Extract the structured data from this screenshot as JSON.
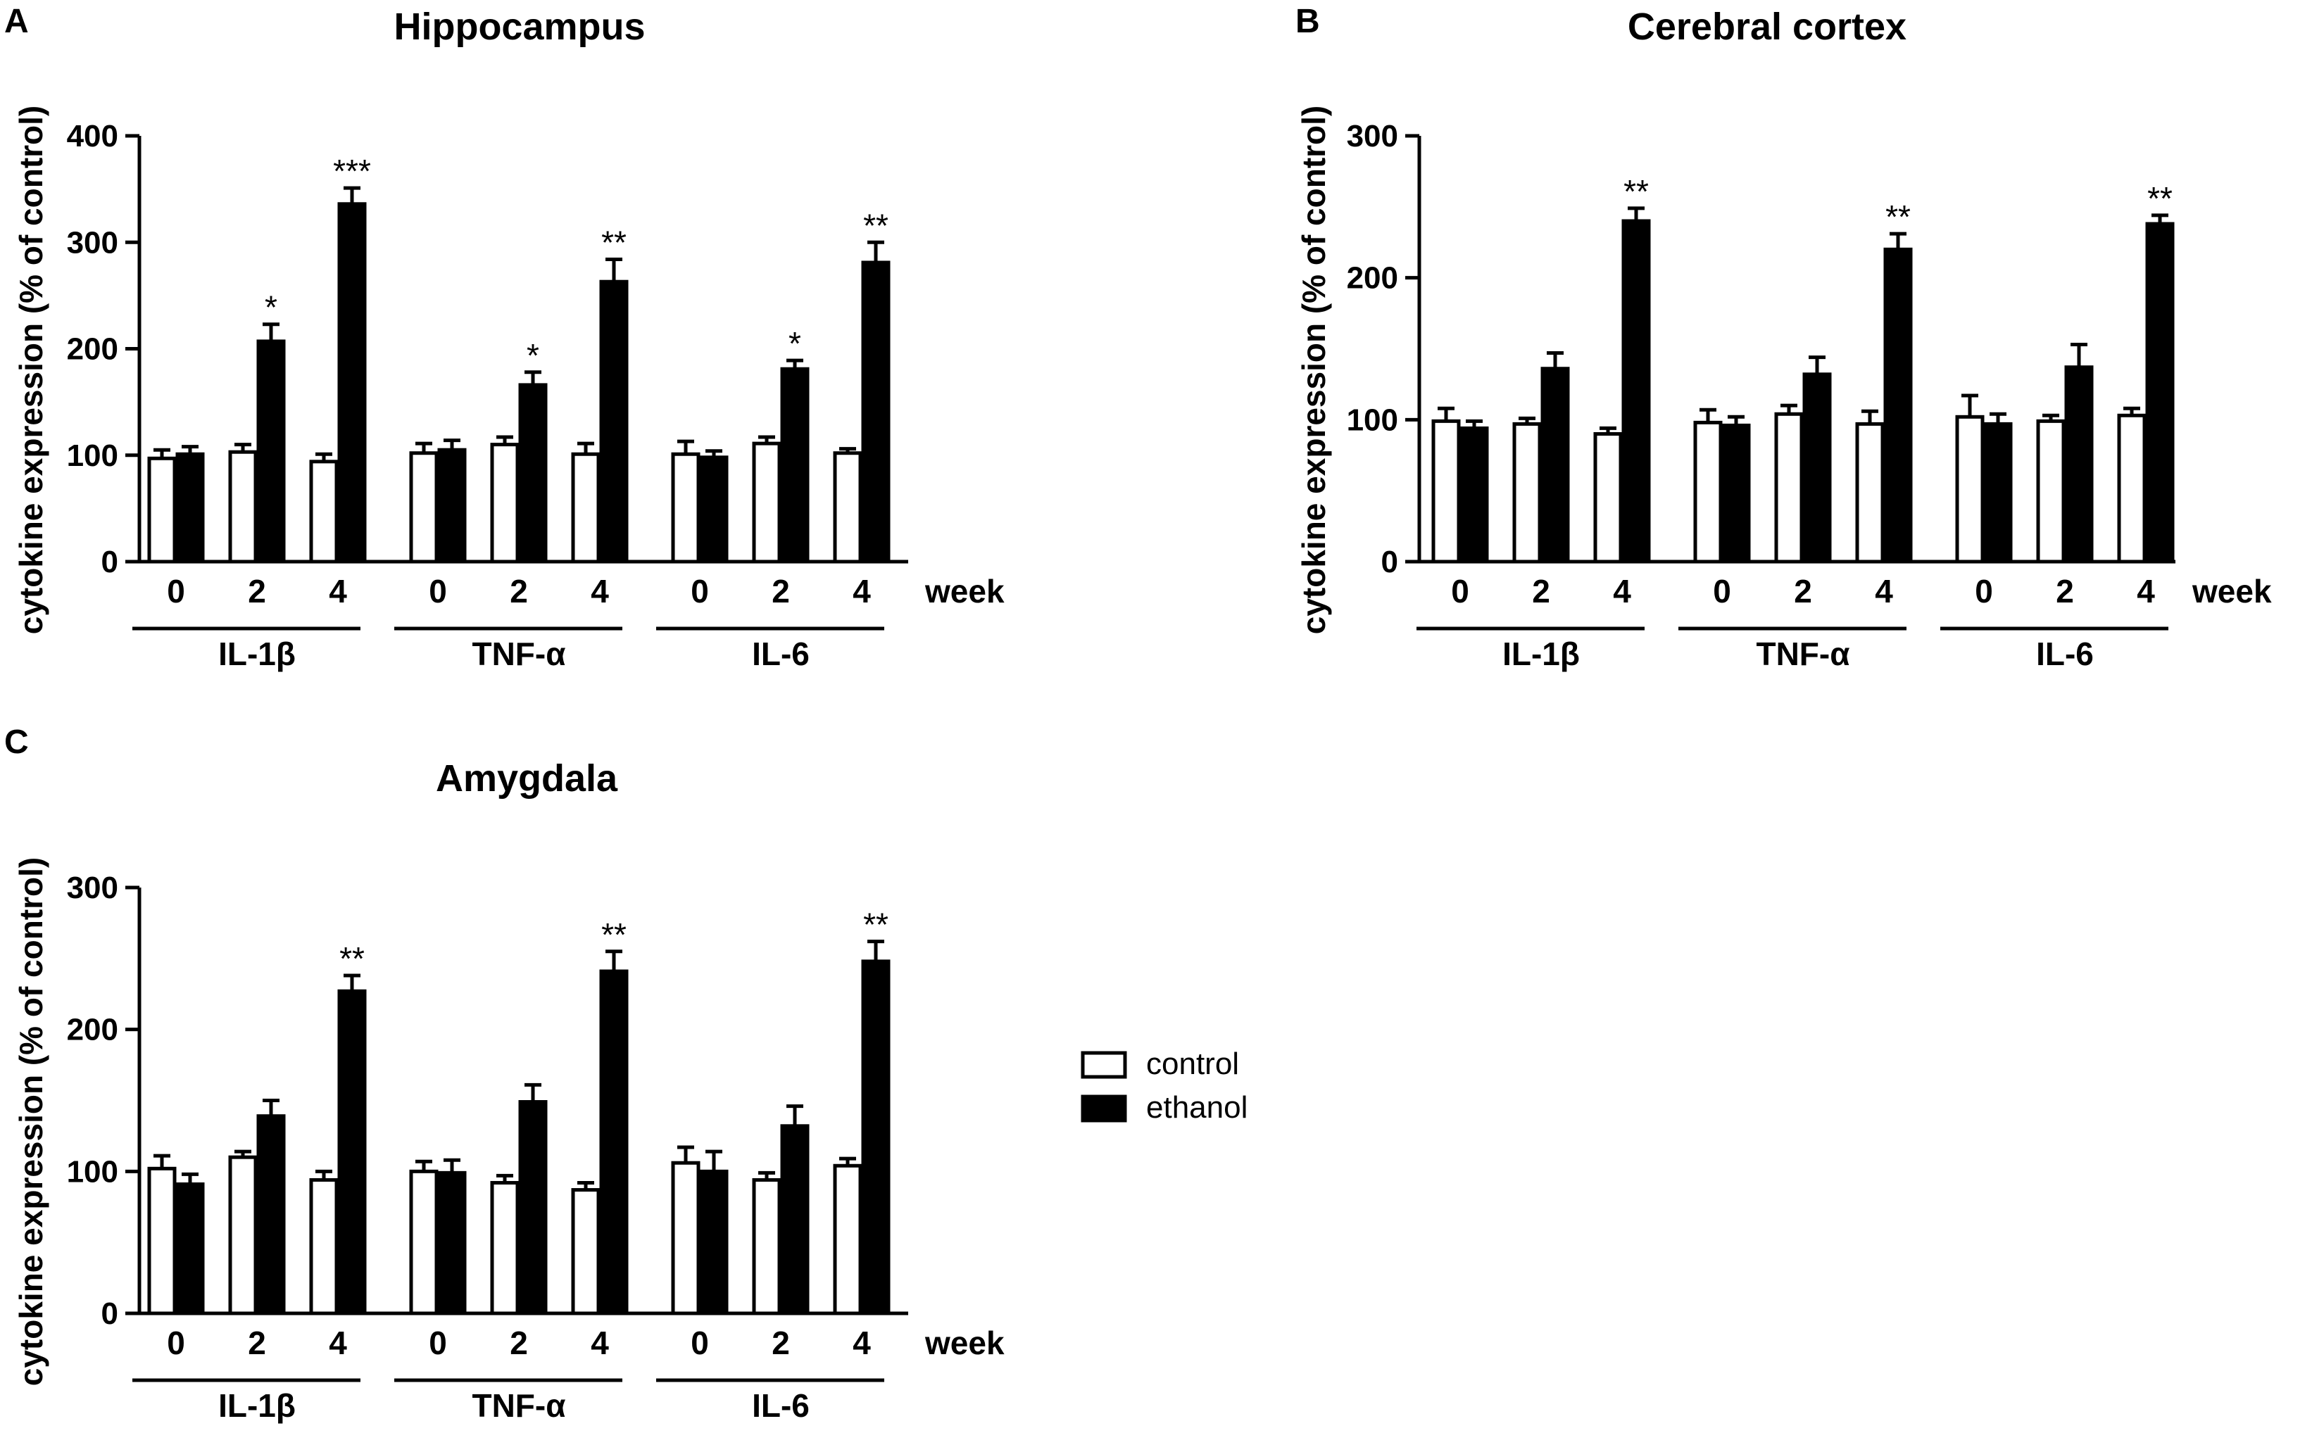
{
  "legend": {
    "items": [
      {
        "label": "control",
        "fill": "#ffffff"
      },
      {
        "label": "ethanol",
        "fill": "#000000"
      }
    ]
  },
  "chart_data": [
    {
      "panel": "A",
      "type": "bar",
      "title": "Hippocampus",
      "ylabel": "cytokine expression (% of control)",
      "xlabel": "week",
      "ylim": [
        0,
        400
      ],
      "yticks": [
        0,
        100,
        200,
        300,
        400
      ],
      "weeks": [
        "0",
        "2",
        "4"
      ],
      "groups": [
        {
          "name": "IL-1β",
          "control": [
            97,
            103,
            94
          ],
          "control_err": [
            8,
            7,
            7
          ],
          "ethanol": [
            101,
            207,
            336
          ],
          "ethanol_err": [
            7,
            16,
            15
          ],
          "sig": [
            "",
            "*",
            "***"
          ]
        },
        {
          "name": "TNF-α",
          "control": [
            102,
            110,
            101
          ],
          "control_err": [
            9,
            7,
            10
          ],
          "ethanol": [
            105,
            166,
            263
          ],
          "ethanol_err": [
            9,
            12,
            21
          ],
          "sig": [
            "",
            "*",
            "**"
          ]
        },
        {
          "name": "IL-6",
          "control": [
            101,
            111,
            102
          ],
          "control_err": [
            12,
            6,
            4
          ],
          "ethanol": [
            98,
            181,
            281
          ],
          "ethanol_err": [
            6,
            8,
            19
          ],
          "sig": [
            "",
            "*",
            "**"
          ]
        }
      ]
    },
    {
      "panel": "B",
      "type": "bar",
      "title": "Cerebral cortex",
      "ylabel": "cytokine expression (% of control)",
      "xlabel": "week",
      "ylim": [
        0,
        300
      ],
      "yticks": [
        0,
        100,
        200,
        300
      ],
      "weeks": [
        "0",
        "2",
        "4"
      ],
      "groups": [
        {
          "name": "IL-1β",
          "control": [
            99,
            97,
            90
          ],
          "control_err": [
            9,
            4,
            4
          ],
          "ethanol": [
            94,
            136,
            240
          ],
          "ethanol_err": [
            5,
            11,
            9
          ],
          "sig": [
            "",
            "",
            "**"
          ]
        },
        {
          "name": "TNF-α",
          "control": [
            98,
            104,
            97
          ],
          "control_err": [
            9,
            6,
            9
          ],
          "ethanol": [
            96,
            132,
            220
          ],
          "ethanol_err": [
            6,
            12,
            11
          ],
          "sig": [
            "",
            "",
            "**"
          ]
        },
        {
          "name": "IL-6",
          "control": [
            102,
            99,
            103
          ],
          "control_err": [
            15,
            4,
            5
          ],
          "ethanol": [
            97,
            137,
            238
          ],
          "ethanol_err": [
            7,
            16,
            6
          ],
          "sig": [
            "",
            "",
            "**"
          ]
        }
      ]
    },
    {
      "panel": "C",
      "type": "bar",
      "title": "Amygdala",
      "ylabel": "cytokine expression (% of control)",
      "xlabel": "week",
      "ylim": [
        0,
        300
      ],
      "yticks": [
        0,
        100,
        200,
        300
      ],
      "weeks": [
        "0",
        "2",
        "4"
      ],
      "groups": [
        {
          "name": "IL-1β",
          "control": [
            102,
            110,
            94
          ],
          "control_err": [
            9,
            4,
            6
          ],
          "ethanol": [
            91,
            139,
            227
          ],
          "ethanol_err": [
            7,
            11,
            11
          ],
          "sig": [
            "",
            "",
            "**"
          ]
        },
        {
          "name": "TNF-α",
          "control": [
            100,
            92,
            87
          ],
          "control_err": [
            7,
            5,
            5
          ],
          "ethanol": [
            99,
            149,
            241
          ],
          "ethanol_err": [
            9,
            12,
            14
          ],
          "sig": [
            "",
            "",
            "**"
          ]
        },
        {
          "name": "IL-6",
          "control": [
            106,
            94,
            104
          ],
          "control_err": [
            11,
            5,
            5
          ],
          "ethanol": [
            100,
            132,
            248
          ],
          "ethanol_err": [
            14,
            14,
            14
          ],
          "sig": [
            "",
            "",
            "**"
          ]
        }
      ]
    }
  ]
}
